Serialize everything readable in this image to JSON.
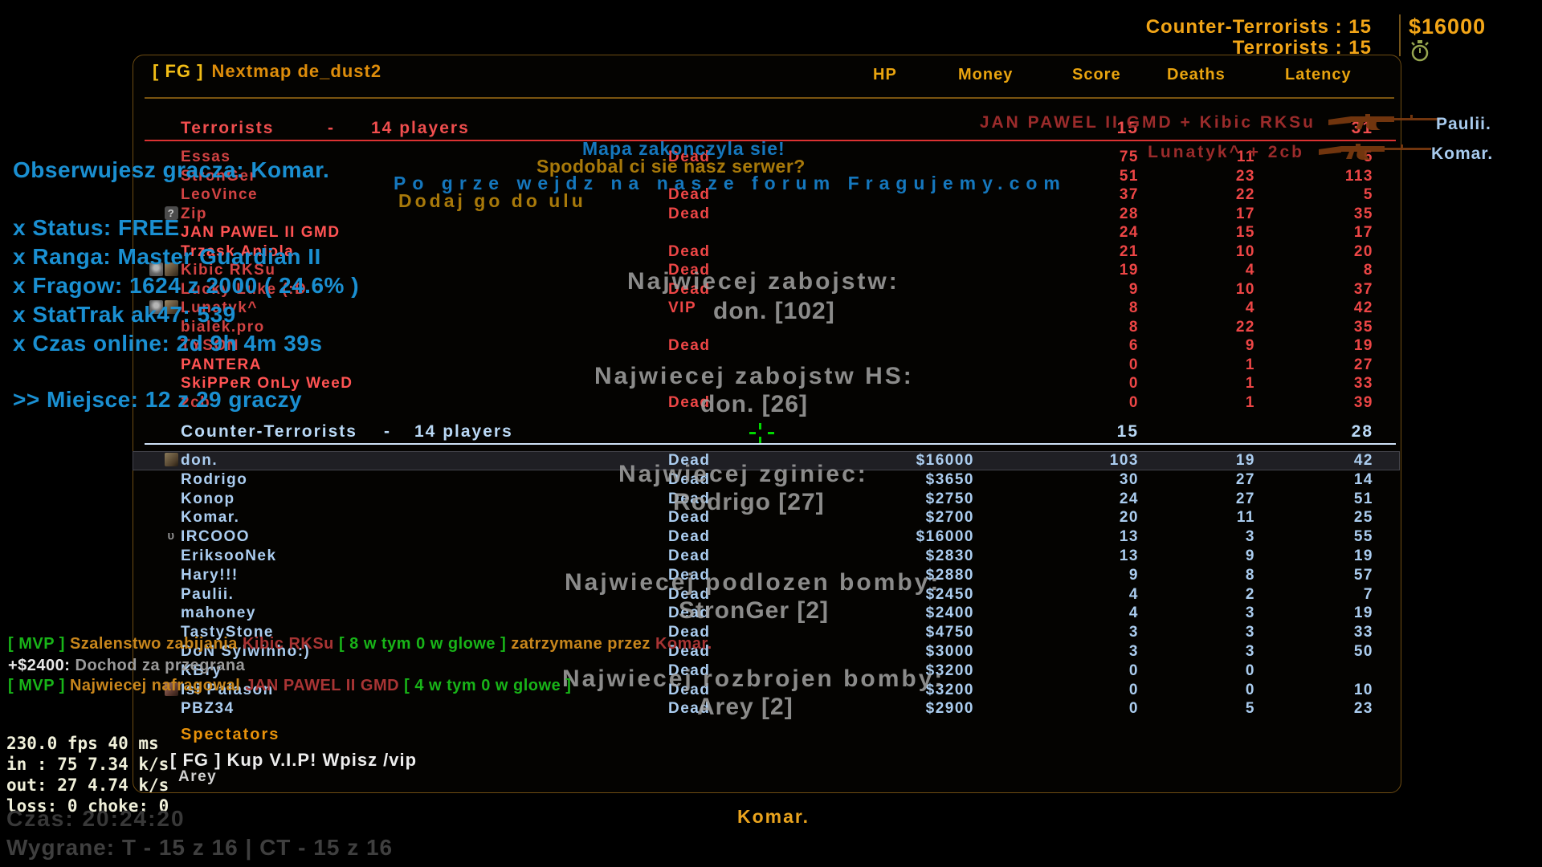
{
  "top_hud": {
    "ct_label": "Counter-Terrorists : 15",
    "t_label": "Terrorists : 15",
    "money": "$16000"
  },
  "scoreboard": {
    "title": {
      "tag": "[ FG ]",
      "text": "Nextmap de_dust2"
    },
    "columns": [
      "HP",
      "Money",
      "Score",
      "Deaths",
      "Latency"
    ],
    "teams": [
      {
        "name": "Terrorists",
        "separator": "-",
        "players_count": "14 players",
        "score": "15",
        "latency": "31",
        "players": [
          {
            "name": "Essas",
            "hp": "Dead",
            "money": "",
            "score": "75",
            "deaths": "11",
            "latency": "5",
            "icon": ""
          },
          {
            "name": "StronGer",
            "hp": "",
            "money": "",
            "score": "51",
            "deaths": "23",
            "latency": "113",
            "icon": ""
          },
          {
            "name": "LeoVince",
            "hp": "Dead",
            "money": "",
            "score": "37",
            "deaths": "22",
            "latency": "5",
            "icon": ""
          },
          {
            "name": "Zip",
            "hp": "Dead",
            "money": "",
            "score": "28",
            "deaths": "17",
            "latency": "35",
            "icon": "question"
          },
          {
            "name": "JAN PAWEL II GMD",
            "hp": "",
            "money": "",
            "score": "24",
            "deaths": "15",
            "latency": "17",
            "icon": "",
            "bright": true
          },
          {
            "name": "Trzask Aniola",
            "hp": "Dead",
            "money": "",
            "score": "21",
            "deaths": "10",
            "latency": "20",
            "icon": "",
            "bright": true
          },
          {
            "name": "Kibic RKSu",
            "hp": "Dead",
            "money": "",
            "score": "19",
            "deaths": "4",
            "latency": "8",
            "icon": "avatars_pair"
          },
          {
            "name": "Lucky Luke (:D",
            "hp": "Dead",
            "money": "",
            "score": "9",
            "deaths": "10",
            "latency": "37",
            "icon": ""
          },
          {
            "name": "Lunatyk^",
            "hp": "VIP",
            "money": "",
            "score": "8",
            "deaths": "4",
            "latency": "42",
            "icon": "avatars_pair"
          },
          {
            "name": "bialek.pro",
            "hp": "",
            "money": "",
            "score": "8",
            "deaths": "22",
            "latency": "35",
            "icon": ""
          },
          {
            "name": "TYSON",
            "hp": "Dead",
            "money": "",
            "score": "6",
            "deaths": "9",
            "latency": "19",
            "icon": ""
          },
          {
            "name": "PANTERA",
            "hp": "",
            "money": "",
            "score": "0",
            "deaths": "1",
            "latency": "27",
            "icon": "",
            "bright": true
          },
          {
            "name": "SkiPPeR OnLy WeeD",
            "hp": "",
            "money": "",
            "score": "0",
            "deaths": "1",
            "latency": "33",
            "icon": "",
            "bright": true
          },
          {
            "name": "2cb",
            "hp": "Dead",
            "money": "",
            "score": "0",
            "deaths": "1",
            "latency": "39",
            "icon": ""
          }
        ]
      },
      {
        "name": "Counter-Terrorists",
        "separator": "-",
        "players_count": "14 players",
        "score": "15",
        "latency": "28",
        "players": [
          {
            "name": "don.",
            "hp": "Dead",
            "money": "$16000",
            "score": "103",
            "deaths": "19",
            "latency": "42",
            "icon": "avatar_tan",
            "highlight": true
          },
          {
            "name": "Rodrigo",
            "hp": "Dead",
            "money": "$3650",
            "score": "30",
            "deaths": "27",
            "latency": "14",
            "icon": ""
          },
          {
            "name": "Konop",
            "hp": "Dead",
            "money": "$2750",
            "score": "24",
            "deaths": "27",
            "latency": "51",
            "icon": ""
          },
          {
            "name": "Komar.",
            "hp": "Dead",
            "money": "$2700",
            "score": "20",
            "deaths": "11",
            "latency": "25",
            "icon": ""
          },
          {
            "name": "IRCOOO",
            "hp": "Dead",
            "money": "$16000",
            "score": "13",
            "deaths": "3",
            "latency": "55",
            "icon": "status_u"
          },
          {
            "name": "EriksooNek",
            "hp": "Dead",
            "money": "$2830",
            "score": "13",
            "deaths": "9",
            "latency": "19",
            "icon": ""
          },
          {
            "name": "Hary!!!",
            "hp": "Dead",
            "money": "$2880",
            "score": "9",
            "deaths": "8",
            "latency": "57",
            "icon": ""
          },
          {
            "name": "Paulii.",
            "hp": "Dead",
            "money": "$2450",
            "score": "4",
            "deaths": "2",
            "latency": "7",
            "icon": ""
          },
          {
            "name": "mahoney",
            "hp": "Dead",
            "money": "$2400",
            "score": "4",
            "deaths": "3",
            "latency": "19",
            "icon": ""
          },
          {
            "name": "TastyStone",
            "hp": "Dead",
            "money": "$4750",
            "score": "3",
            "deaths": "3",
            "latency": "33",
            "icon": ""
          },
          {
            "name": "DoN Sylwinho:)",
            "hp": "Dead",
            "money": "$3000",
            "score": "3",
            "deaths": "3",
            "latency": "50",
            "icon": ""
          },
          {
            "name": "KBry",
            "hp": "Dead",
            "money": "$3200",
            "score": "0",
            "deaths": "0",
            "latency": "",
            "icon": ""
          },
          {
            "name": "Isi Palason",
            "hp": "Dead",
            "money": "$3200",
            "score": "0",
            "deaths": "0",
            "latency": "10",
            "icon": "avatar_red"
          },
          {
            "name": "PBZ34",
            "hp": "Dead",
            "money": "$2900",
            "score": "0",
            "deaths": "5",
            "latency": "23",
            "icon": ""
          }
        ]
      }
    ],
    "spectators_label": "Spectators",
    "spectators": [
      "Arey"
    ]
  },
  "killfeed": [
    {
      "attacker": "JAN PAWEL II GMD + Kibic RKSu",
      "weapon": "rifle-icon",
      "victim": "Paulii."
    },
    {
      "attacker": "Lunatyk^ + 2cb",
      "weapon": "rifle-icon",
      "victim": "Komar."
    }
  ],
  "spectate": {
    "watching": "Obserwujesz gracza: Komar.",
    "status_lines": [
      "x Status: FREE",
      "x Ranga: Master Guardian II",
      "x Fragow: 1624 z 2000 ( 24.6% )",
      "x StatTrak ak47: 539",
      "x Czas online: 2d 9h 4m 39s"
    ],
    "rank_line": ">> Miejsce: 12 z 29 graczy"
  },
  "center_messages": {
    "map_end": "Mapa zakonczyla sie!",
    "ask": "Spodobal ci sie nasz serwer?",
    "forum": "Po grze wejdz na nasze forum Fragujemy.com",
    "add": "Dodaj go do ulu"
  },
  "map_stats": [
    {
      "label": "Najwiecej zabojstw:",
      "value": "don. [102]"
    },
    {
      "label": "Najwiecej zabojstw HS:",
      "value": "don. [26]"
    },
    {
      "label": "Najwiecej zginiec:",
      "value": "Rodrigo [27]"
    },
    {
      "label": "Najwiecej podlozen bomby:",
      "value": "StronGer [2]"
    },
    {
      "label": "Najwiecej rozbrojen bomby:",
      "value": "Arey [2]"
    }
  ],
  "chat": {
    "lines": [
      [
        {
          "t": "[ MVP ] ",
          "c": "green"
        },
        {
          "t": "Szalenstwo zabijania ",
          "c": "orange"
        },
        {
          "t": "Kibic RKSu ",
          "c": "red"
        },
        {
          "t": "[ 8 w tym 0 w glowe ] ",
          "c": "green"
        },
        {
          "t": "zatrzymane przez ",
          "c": "orange"
        },
        {
          "t": "Komar.",
          "c": "red"
        }
      ],
      [
        {
          "t": "+$2400: ",
          "c": "white"
        },
        {
          "t": "Dochod za przegrana",
          "c": "gray"
        }
      ],
      [
        {
          "t": "[ MVP ] ",
          "c": "green"
        },
        {
          "t": "Najwiecej nafragowal ",
          "c": "orange"
        },
        {
          "t": "JAN PAWEL II GMD ",
          "c": "red"
        },
        {
          "t": "[ 4 w tym 0 w glowe ]",
          "c": "green"
        }
      ]
    ],
    "vip_ad": "[ FG ] Kup V.I.P! Wpisz /vip"
  },
  "netgraph": {
    "line1": "230.0 fps  40 ms",
    "line2": "in :  75 7.34 k/s",
    "line3": "out:  27 4.74 k/s",
    "line4": "loss: 0 choke:  0"
  },
  "bottom": {
    "spectating_name": "Komar.",
    "time": "Czas: 20:24:20",
    "wins": "Wygrane: T - 15 z 16 | CT - 15 z 16"
  },
  "colors": {
    "gold": "#e9a40f",
    "t_red": "#d24343",
    "t_red_bright": "#ff5353",
    "ct_blue": "#abcdf0",
    "hud_cyan": "#1a8fd1",
    "mvp_green": "#18b418",
    "mvp_orange": "#c8861c",
    "killfeed_red": "#9b2b2b",
    "stat_gray": "#a3a3a3",
    "crosshair_green": "#00d800",
    "panel_border": "#6e4c12"
  }
}
